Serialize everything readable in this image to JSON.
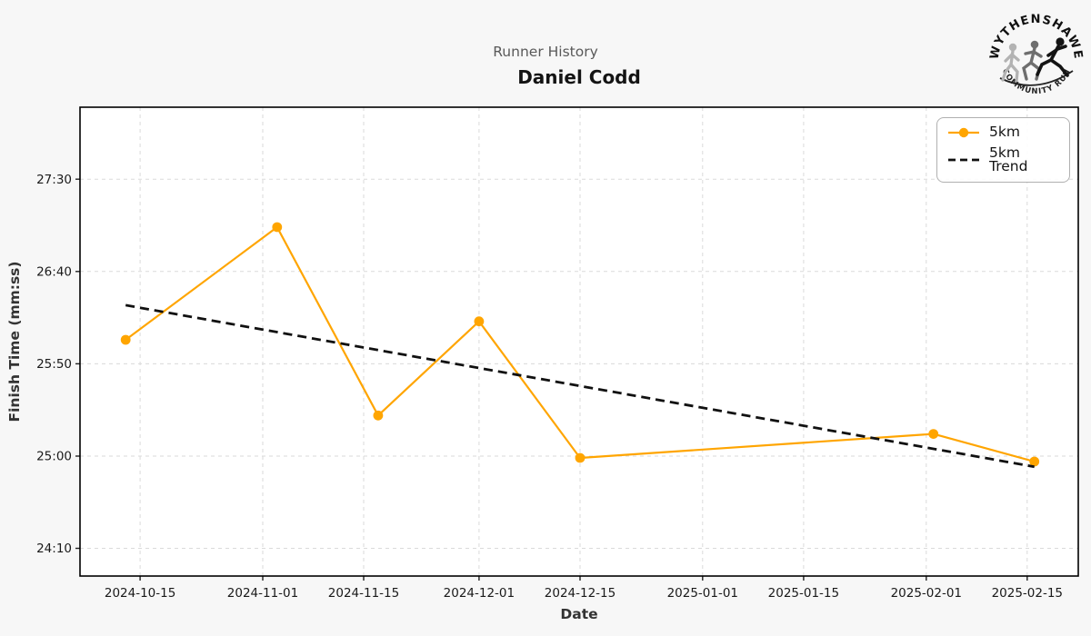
{
  "header": {
    "suptitle": "Runner History",
    "title": "Daniel Codd"
  },
  "logo": {
    "top_text": "WYTHENSHAWE",
    "bottom_text": "COMMUNITY RUN"
  },
  "legend": {
    "items": [
      {
        "label": "5km",
        "swatch": "orange-line-circle-marker"
      },
      {
        "label": "5km Trend",
        "swatch": "black-dashed-line"
      }
    ]
  },
  "chart_data": {
    "type": "line",
    "suptitle": "Runner History",
    "title": "Daniel Codd",
    "xlabel": "Date",
    "ylabel": "Finish Time (mm:ss)",
    "grid": true,
    "legend_position": "upper right",
    "x_ticks": [
      "2024-10-15",
      "2024-11-01",
      "2024-11-15",
      "2024-12-01",
      "2024-12-15",
      "2025-01-01",
      "2025-01-15",
      "2025-02-01",
      "2025-02-15"
    ],
    "y_ticks": [
      {
        "seconds": 1650,
        "label": "27:30"
      },
      {
        "seconds": 1600,
        "label": "26:40"
      },
      {
        "seconds": 1550,
        "label": "25:50"
      },
      {
        "seconds": 1500,
        "label": "25:00"
      },
      {
        "seconds": 1450,
        "label": "24:10"
      }
    ],
    "xlim": [
      "2024-10-06T16:00:00Z",
      "2025-02-22T02:00:00Z"
    ],
    "ylim_seconds": [
      1435,
      1689
    ],
    "series": [
      {
        "name": "5km",
        "color": "#FFA500",
        "marker": "circle",
        "points": [
          {
            "date": "2024-10-13",
            "time": "26:03",
            "seconds": 1563
          },
          {
            "date": "2024-11-03",
            "time": "27:04",
            "seconds": 1624
          },
          {
            "date": "2024-11-17",
            "time": "25:22",
            "seconds": 1522
          },
          {
            "date": "2024-12-01",
            "time": "26:13",
            "seconds": 1573
          },
          {
            "date": "2024-12-15",
            "time": "24:59",
            "seconds": 1499
          },
          {
            "date": "2025-02-02",
            "time": "25:12",
            "seconds": 1512
          },
          {
            "date": "2025-02-16",
            "time": "24:57",
            "seconds": 1497
          }
        ]
      }
    ],
    "trend": {
      "name": "5km Trend",
      "color": "#111111",
      "style": "dashed",
      "basis": "least-squares-of-5km-points"
    }
  }
}
